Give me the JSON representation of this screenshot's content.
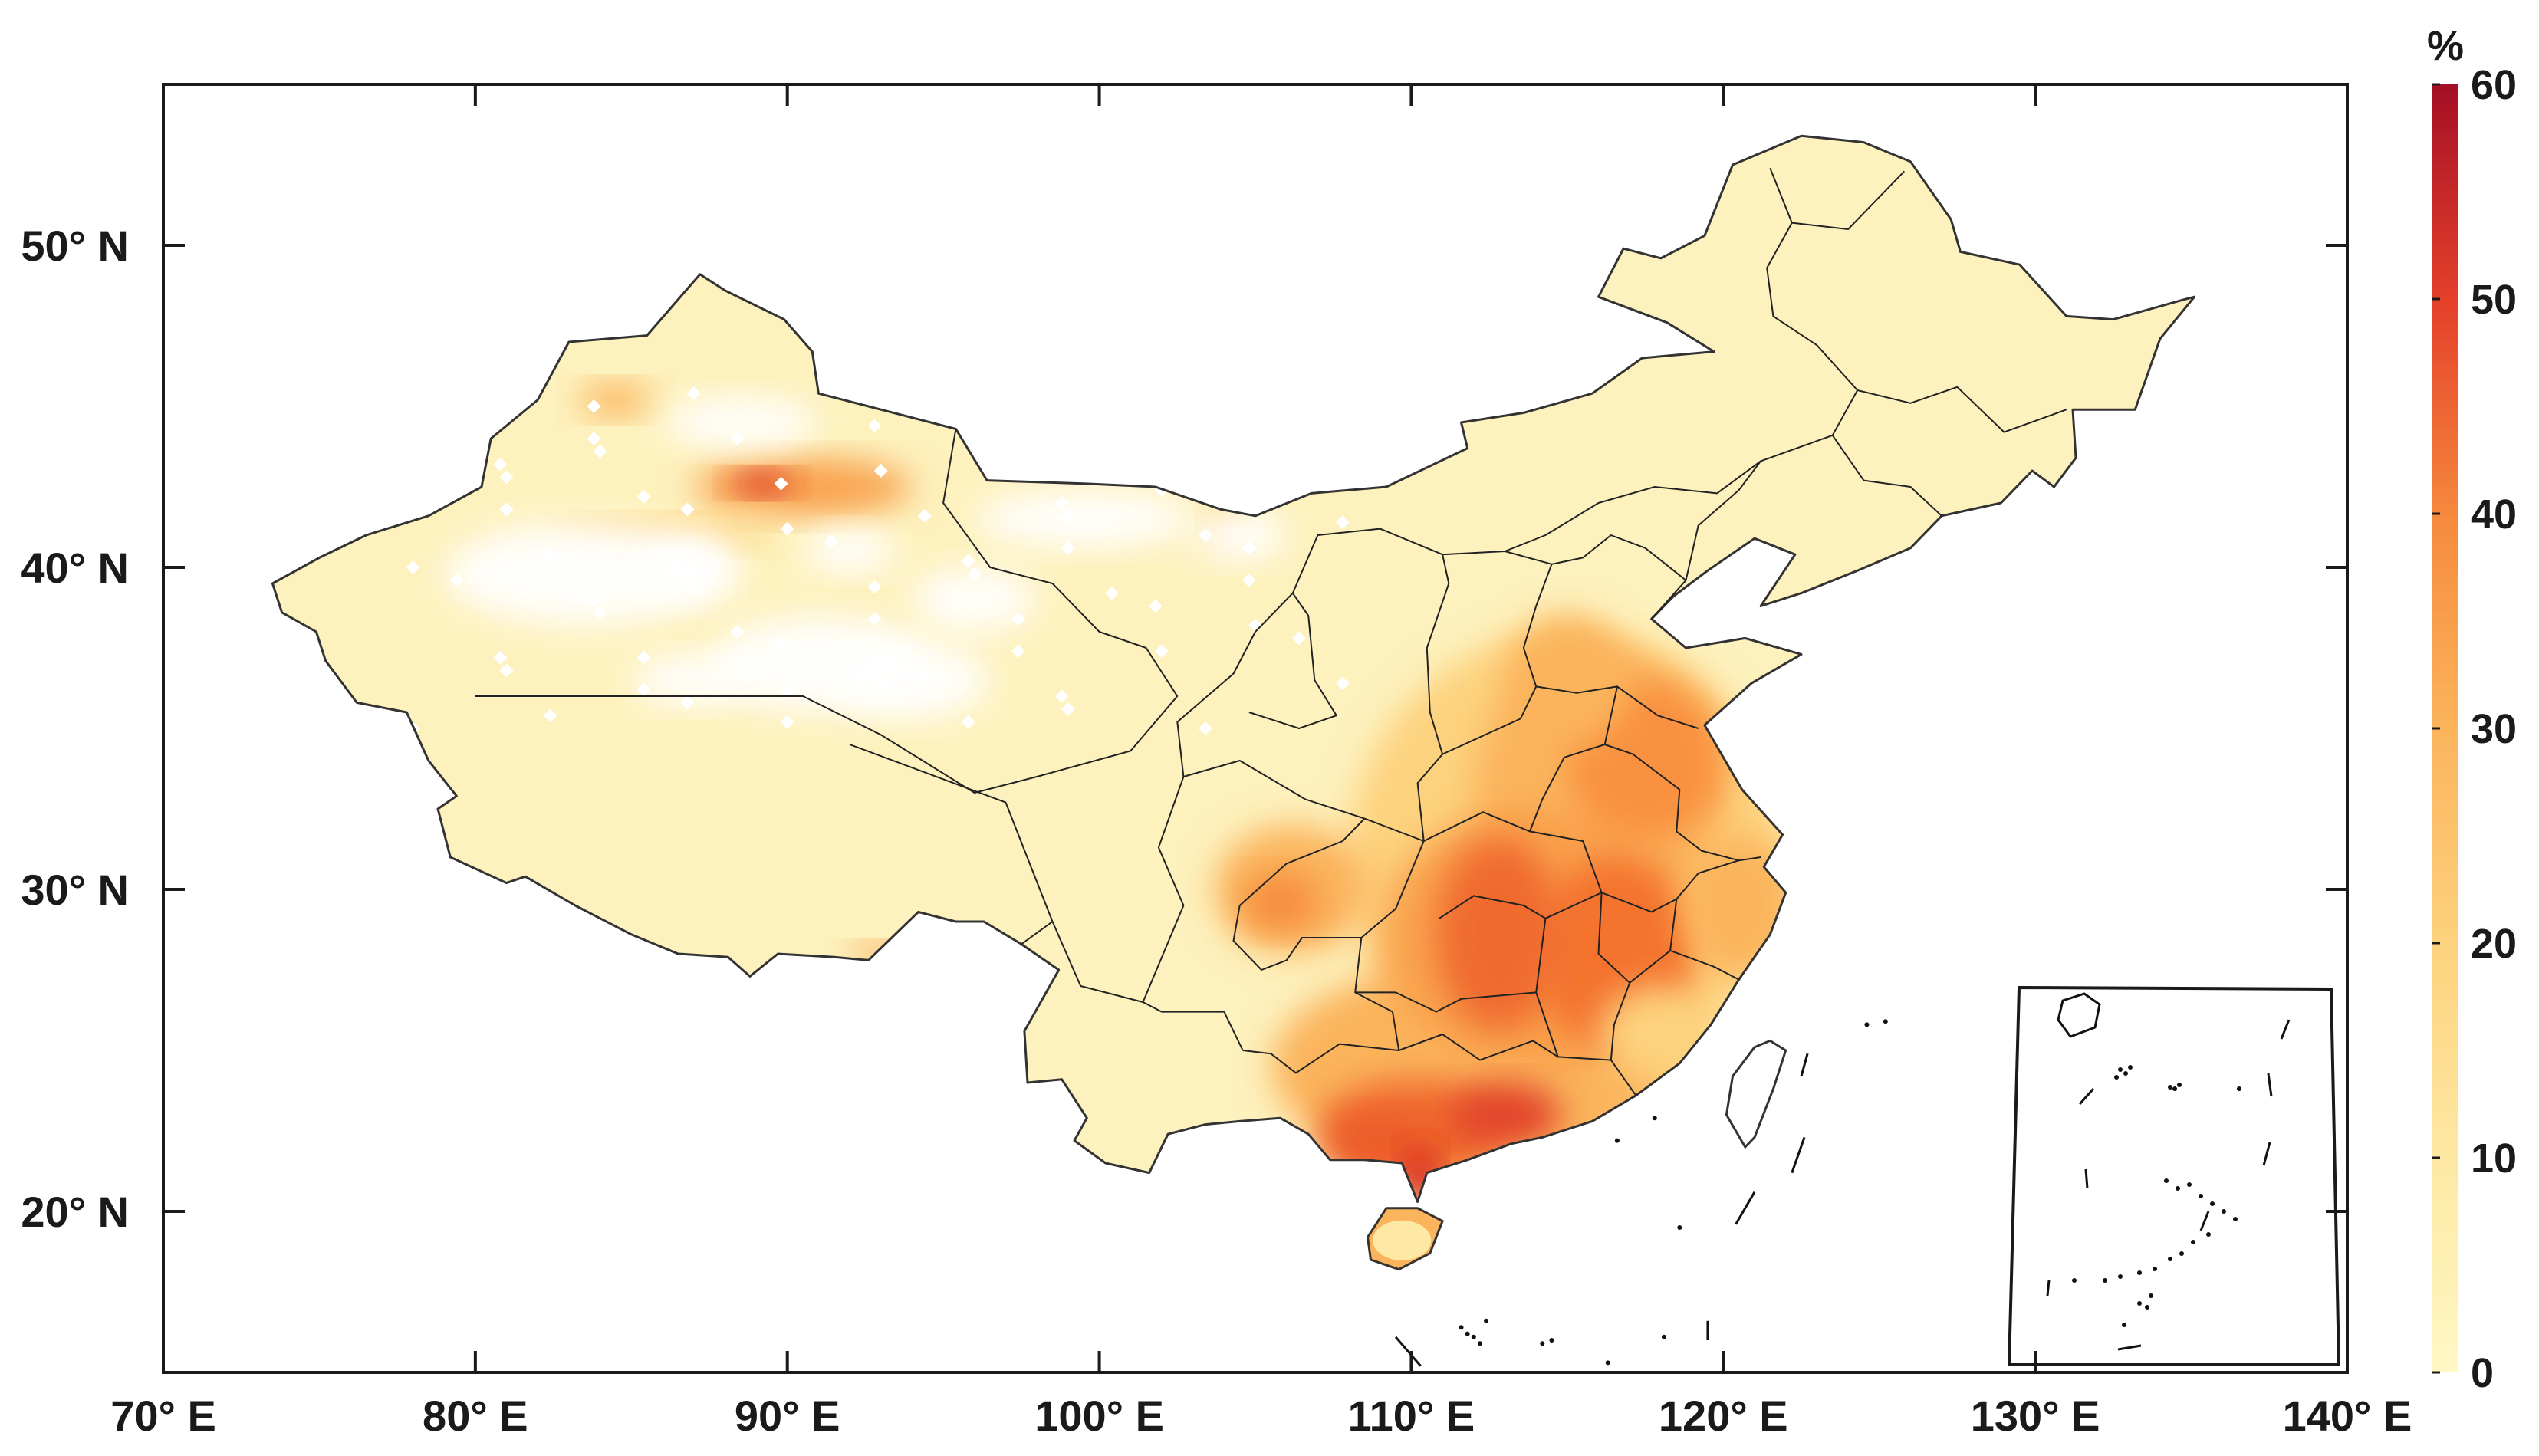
{
  "map": {
    "lon_ticks": [
      "70° E",
      "80° E",
      "90° E",
      "100° E",
      "110° E",
      "120° E",
      "130° E",
      "140° E"
    ],
    "lat_ticks": [
      "20° N",
      "30° N",
      "40° N",
      "50° N"
    ],
    "extent": {
      "lon": [
        70,
        140
      ],
      "lat": [
        15,
        55
      ]
    },
    "inset": "South China Sea islands"
  },
  "colorbar": {
    "unit": "%",
    "ticks": [
      "0",
      "10",
      "20",
      "30",
      "40",
      "50",
      "60"
    ],
    "range": [
      0,
      60
    ],
    "colors": [
      "#fff7c4",
      "#fde9a4",
      "#fdd27e",
      "#fbb45c",
      "#f68b3e",
      "#ee5a2a",
      "#d7261e",
      "#a50f26"
    ]
  },
  "chart_data": {
    "type": "heatmap",
    "title": "",
    "xlabel": "",
    "ylabel": "",
    "xlim": [
      70,
      140
    ],
    "ylim": [
      15,
      55
    ],
    "value_unit": "%",
    "value_range": [
      0,
      60
    ],
    "hotspots": [
      {
        "lon": 113,
        "lat": 29,
        "value": 45
      },
      {
        "lon": 116,
        "lat": 28,
        "value": 45
      },
      {
        "lon": 113,
        "lat": 23,
        "value": 50
      },
      {
        "lon": 109,
        "lat": 22,
        "value": 45
      },
      {
        "lon": 110.5,
        "lat": 20.5,
        "value": 55
      },
      {
        "lon": 117,
        "lat": 33,
        "value": 35
      },
      {
        "lon": 115,
        "lat": 36,
        "value": 30
      },
      {
        "lon": 106,
        "lat": 30,
        "value": 35
      },
      {
        "lon": 89,
        "lat": 42.5,
        "value": 60
      },
      {
        "lon": 91,
        "lat": 42.5,
        "value": 35
      },
      {
        "lon": 84.5,
        "lat": 45,
        "value": 25
      },
      {
        "lon": 109.5,
        "lat": 19,
        "value": 25
      }
    ]
  }
}
